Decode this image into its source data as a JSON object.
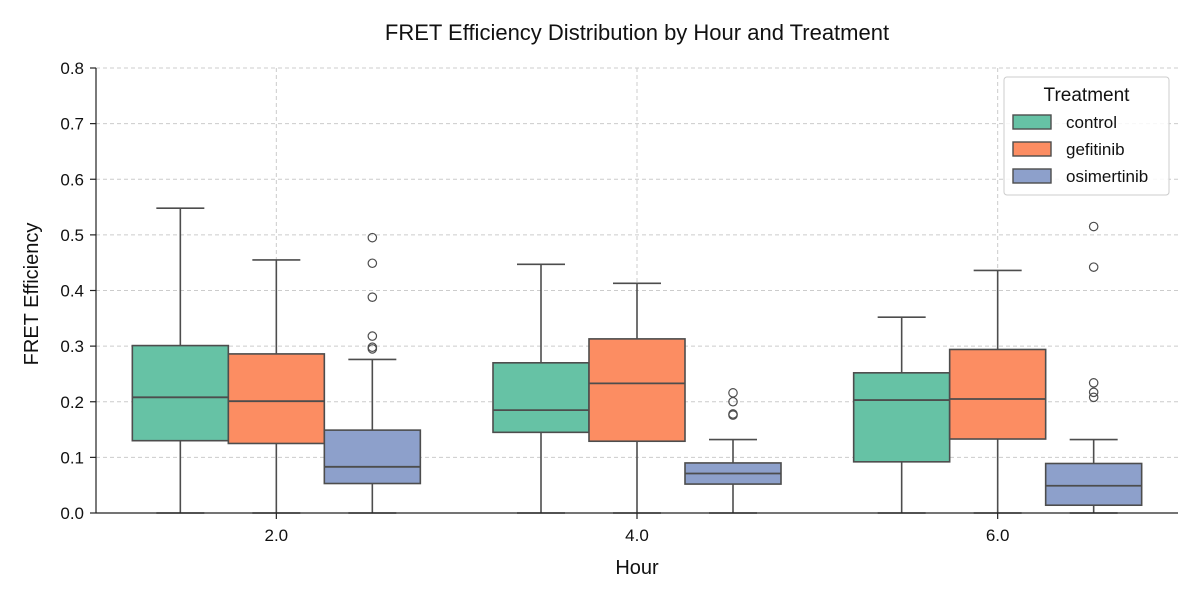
{
  "chart_data": {
    "type": "box",
    "title": "FRET Efficiency Distribution by Hour and Treatment",
    "xlabel": "Hour",
    "ylabel": "FRET Efficiency",
    "categories": [
      "2.0",
      "4.0",
      "6.0"
    ],
    "ylim": [
      0.0,
      0.8
    ],
    "yticks": [
      "0.0",
      "0.1",
      "0.2",
      "0.3",
      "0.4",
      "0.5",
      "0.6",
      "0.7",
      "0.8"
    ],
    "grid": true,
    "legend": {
      "title": "Treatment",
      "placement": "top-right"
    },
    "series": [
      {
        "name": "control",
        "color": "#66c2a5",
        "boxes": [
          {
            "category": "2.0",
            "whisker_low": 0.0,
            "q1": 0.13,
            "median": 0.208,
            "q3": 0.301,
            "whisker_high": 0.548,
            "outliers": []
          },
          {
            "category": "4.0",
            "whisker_low": 0.0,
            "q1": 0.145,
            "median": 0.185,
            "q3": 0.27,
            "whisker_high": 0.447,
            "outliers": []
          },
          {
            "category": "6.0",
            "whisker_low": 0.0,
            "q1": 0.092,
            "median": 0.203,
            "q3": 0.252,
            "whisker_high": 0.352,
            "outliers": []
          }
        ]
      },
      {
        "name": "gefitinib",
        "color": "#fc8d62",
        "boxes": [
          {
            "category": "2.0",
            "whisker_low": 0.0,
            "q1": 0.125,
            "median": 0.201,
            "q3": 0.286,
            "whisker_high": 0.455,
            "outliers": []
          },
          {
            "category": "4.0",
            "whisker_low": 0.0,
            "q1": 0.129,
            "median": 0.233,
            "q3": 0.313,
            "whisker_high": 0.413,
            "outliers": []
          },
          {
            "category": "6.0",
            "whisker_low": 0.0,
            "q1": 0.133,
            "median": 0.205,
            "q3": 0.294,
            "whisker_high": 0.436,
            "outliers": []
          }
        ]
      },
      {
        "name": "osimertinib",
        "color": "#8da0cb",
        "boxes": [
          {
            "category": "2.0",
            "whisker_low": 0.0,
            "q1": 0.053,
            "median": 0.083,
            "q3": 0.149,
            "whisker_high": 0.276,
            "outliers": [
              0.295,
              0.298,
              0.318,
              0.388,
              0.449,
              0.495
            ]
          },
          {
            "category": "4.0",
            "whisker_low": 0.0,
            "q1": 0.052,
            "median": 0.071,
            "q3": 0.09,
            "whisker_high": 0.132,
            "outliers": [
              0.176,
              0.178,
              0.2,
              0.216
            ]
          },
          {
            "category": "6.0",
            "whisker_low": 0.0,
            "q1": 0.014,
            "median": 0.049,
            "q3": 0.089,
            "whisker_high": 0.132,
            "outliers": [
              0.208,
              0.217,
              0.234,
              0.442,
              0.515
            ]
          }
        ]
      }
    ]
  }
}
